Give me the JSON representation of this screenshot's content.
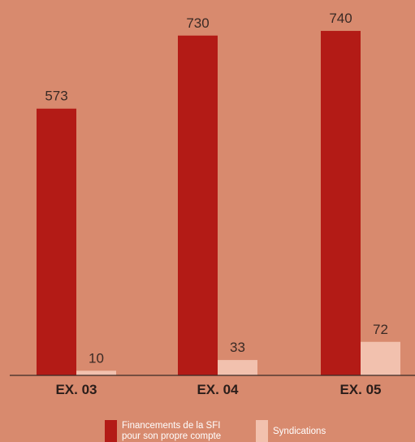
{
  "chart_data": {
    "type": "bar",
    "categories": [
      "EX. 03",
      "EX. 04",
      "EX. 05"
    ],
    "series": [
      {
        "name": "Financements de la SFI pour son propre compte",
        "values": [
          573,
          730,
          740
        ],
        "color": "#b31b16"
      },
      {
        "name": "Syndications",
        "values": [
          10,
          33,
          72
        ],
        "color": "#f2c1ae"
      }
    ],
    "ylim": [
      0,
      775
    ],
    "grid": false,
    "legend_position": "bottom"
  },
  "legend": {
    "own_line1": "Financements de la SFI",
    "own_line2": "pour son propre compte",
    "synd": "Syndications"
  }
}
